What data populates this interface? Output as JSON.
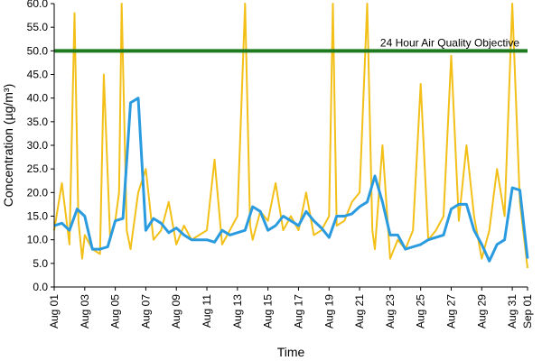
{
  "chart_data": {
    "type": "line",
    "xlabel": "Time",
    "ylabel": "Concentration (µg/m³)",
    "ylim": [
      0,
      60
    ],
    "y_ticks": [
      0,
      5,
      10,
      15,
      20,
      25,
      30,
      35,
      40,
      45,
      50,
      55,
      60
    ],
    "y_tick_labels": [
      "0.0",
      "5.0",
      "10.0",
      "15.0",
      "20.0",
      "25.0",
      "30.0",
      "35.0",
      "40.0",
      "45.0",
      "50.0",
      "55.0",
      "60.0"
    ],
    "x_range": [
      "2016-08-01",
      "2016-09-01"
    ],
    "x_ticks": [
      "2016-08-01",
      "2016-08-03",
      "2016-08-05",
      "2016-08-07",
      "2016-08-09",
      "2016-08-11",
      "2016-08-13",
      "2016-08-15",
      "2016-08-17",
      "2016-08-19",
      "2016-08-21",
      "2016-08-23",
      "2016-08-25",
      "2016-08-27",
      "2016-08-29",
      "2016-08-31",
      "2016-09-01"
    ],
    "x_tick_labels": [
      "Aug 01",
      "Aug 03",
      "Aug 05",
      "Aug 07",
      "Aug 09",
      "Aug 11",
      "Aug 13",
      "Aug 15",
      "Aug 17",
      "Aug 19",
      "Aug 21",
      "Aug 23",
      "Aug 25",
      "Aug 27",
      "Aug 29",
      "Aug 31",
      "Sep 01"
    ],
    "grid": false,
    "reference_line": {
      "value": 50,
      "label": "24 Hour Air Quality Objective",
      "color": "#1e7a1e"
    },
    "series": [
      {
        "style": "hourly",
        "color": "#f2c018",
        "x": [
          "2016-08-01",
          "2016-08-01T12:00",
          "2016-08-02",
          "2016-08-02T08:00",
          "2016-08-02T14:00",
          "2016-08-02T20:00",
          "2016-08-03",
          "2016-08-03T12:00",
          "2016-08-04",
          "2016-08-04T06:00",
          "2016-08-04T16:00",
          "2016-08-05",
          "2016-08-05T06:00",
          "2016-08-05T10:00",
          "2016-08-05T18:00",
          "2016-08-06",
          "2016-08-06T12:00",
          "2016-08-07",
          "2016-08-07T12:00",
          "2016-08-08",
          "2016-08-08T12:00",
          "2016-08-09",
          "2016-08-09T12:00",
          "2016-08-10",
          "2016-08-10T12:00",
          "2016-08-11",
          "2016-08-11T12:00",
          "2016-08-12",
          "2016-08-12T12:00",
          "2016-08-13",
          "2016-08-13T12:00",
          "2016-08-13T20:00",
          "2016-08-14",
          "2016-08-14T12:00",
          "2016-08-15",
          "2016-08-15T12:00",
          "2016-08-16",
          "2016-08-16T12:00",
          "2016-08-17",
          "2016-08-17T12:00",
          "2016-08-18",
          "2016-08-18T12:00",
          "2016-08-19",
          "2016-08-19T06:00",
          "2016-08-19T12:00",
          "2016-08-20",
          "2016-08-20T12:00",
          "2016-08-21",
          "2016-08-21T12:00",
          "2016-08-21T20:00",
          "2016-08-22",
          "2016-08-22T12:00",
          "2016-08-23",
          "2016-08-23T12:00",
          "2016-08-24",
          "2016-08-24T12:00",
          "2016-08-25",
          "2016-08-25T12:00",
          "2016-08-26",
          "2016-08-26T12:00",
          "2016-08-27",
          "2016-08-27T12:00",
          "2016-08-28",
          "2016-08-28T12:00",
          "2016-08-29",
          "2016-08-29T12:00",
          "2016-08-30",
          "2016-08-30T12:00",
          "2016-08-31",
          "2016-08-31T12:00",
          "2016-09-01"
        ],
        "y": [
          12,
          22,
          9,
          58,
          14,
          6,
          11,
          8,
          7,
          45,
          10,
          14,
          20,
          60,
          12,
          8,
          20,
          25,
          10,
          12,
          18,
          9,
          13,
          10,
          11,
          12,
          27,
          9,
          12,
          15,
          60,
          13,
          10,
          16,
          14,
          22,
          12,
          15,
          12,
          20,
          11,
          12,
          15,
          60,
          13,
          14,
          18,
          20,
          60,
          12,
          8,
          30,
          6,
          10,
          8,
          12,
          43,
          10,
          12,
          15,
          49,
          14,
          30,
          15,
          6,
          12,
          25,
          15,
          60,
          18,
          4
        ]
      },
      {
        "style": "rolling 24-hour mean",
        "color": "#2b9be0",
        "x": [
          "2016-08-01",
          "2016-08-01T12:00",
          "2016-08-02",
          "2016-08-02T12:00",
          "2016-08-03",
          "2016-08-03T12:00",
          "2016-08-04",
          "2016-08-04T12:00",
          "2016-08-05",
          "2016-08-05T12:00",
          "2016-08-06",
          "2016-08-06T12:00",
          "2016-08-07",
          "2016-08-07T12:00",
          "2016-08-08",
          "2016-08-08T12:00",
          "2016-08-09",
          "2016-08-09T12:00",
          "2016-08-10",
          "2016-08-10T12:00",
          "2016-08-11",
          "2016-08-11T12:00",
          "2016-08-12",
          "2016-08-12T12:00",
          "2016-08-13",
          "2016-08-13T12:00",
          "2016-08-14",
          "2016-08-14T12:00",
          "2016-08-15",
          "2016-08-15T12:00",
          "2016-08-16",
          "2016-08-16T12:00",
          "2016-08-17",
          "2016-08-17T12:00",
          "2016-08-18",
          "2016-08-18T12:00",
          "2016-08-19",
          "2016-08-19T12:00",
          "2016-08-20",
          "2016-08-20T12:00",
          "2016-08-21",
          "2016-08-21T12:00",
          "2016-08-22",
          "2016-08-22T12:00",
          "2016-08-23",
          "2016-08-23T12:00",
          "2016-08-24",
          "2016-08-24T12:00",
          "2016-08-25",
          "2016-08-25T12:00",
          "2016-08-26",
          "2016-08-26T12:00",
          "2016-08-27",
          "2016-08-27T12:00",
          "2016-08-28",
          "2016-08-28T12:00",
          "2016-08-29",
          "2016-08-29T12:00",
          "2016-08-30",
          "2016-08-30T12:00",
          "2016-08-31",
          "2016-08-31T12:00",
          "2016-09-01"
        ],
        "y": [
          13,
          13.5,
          12,
          16.5,
          15,
          8,
          8,
          8.5,
          14,
          14.5,
          39,
          40,
          12,
          14.5,
          13.5,
          11.5,
          12.5,
          11,
          10,
          10,
          10,
          9.5,
          12,
          11,
          11.5,
          12,
          17,
          16,
          12,
          13,
          15,
          14,
          13,
          16,
          14,
          12.5,
          10.5,
          15,
          15,
          15.5,
          17,
          18,
          23.5,
          18,
          11,
          11,
          8,
          8.5,
          9,
          10,
          10.5,
          11,
          16.5,
          17.5,
          17.5,
          12,
          9,
          5.5,
          9,
          10,
          21,
          20.5,
          6
        ]
      }
    ]
  }
}
